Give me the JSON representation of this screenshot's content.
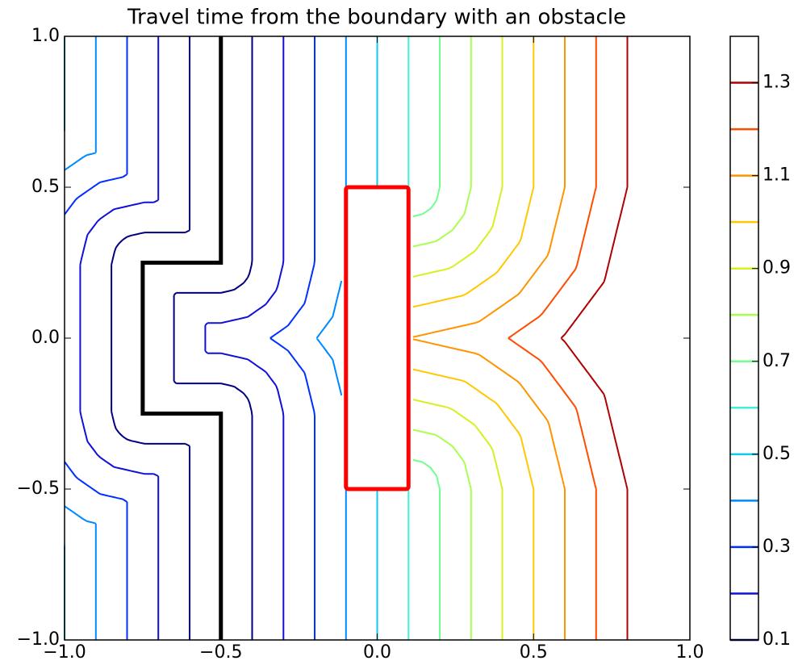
{
  "chart_data": {
    "type": "contour",
    "title": "Travel time from the boundary with an obstacle",
    "xlim": [
      -1,
      1
    ],
    "ylim": [
      -1,
      1
    ],
    "xticks": [
      {
        "value": -1,
        "label": "−1.0"
      },
      {
        "value": -0.5,
        "label": "−0.5"
      },
      {
        "value": 0,
        "label": "0.0"
      },
      0.5,
      {
        "value": 1,
        "label": "1.0"
      }
    ],
    "yticks": [
      {
        "value": -1,
        "label": "−1.0"
      },
      {
        "value": -0.5,
        "label": "−0.5"
      },
      {
        "value": 0,
        "label": "0.0"
      },
      0.5,
      {
        "value": 1,
        "label": "1.0"
      }
    ],
    "levels": [
      0.1,
      0.2,
      0.3,
      0.4,
      0.5,
      0.6,
      0.7,
      0.8,
      0.9,
      1.0,
      1.1,
      1.2,
      1.3
    ],
    "colors": [
      "#00007f",
      "#1010d8",
      "#0030ff",
      "#0088ff",
      "#10c8f0",
      "#40f0d8",
      "#70ff90",
      "#a8ff50",
      "#d8f020",
      "#ffc800",
      "#ff9400",
      "#ff4c00",
      "#b00000"
    ],
    "boundary": {
      "x": [
        -0.5,
        -0.5,
        -0.75,
        -0.75,
        -0.5,
        -0.5
      ],
      "y": [
        1,
        0.25,
        0.25,
        -0.25,
        -0.25,
        -1
      ],
      "color": "#000000"
    },
    "obstacle": {
      "x": [
        -0.1,
        0.1
      ],
      "y": [
        -0.5,
        0.5
      ],
      "color": "#ff0000"
    },
    "colorbar": {
      "lim": [
        0.1,
        1.4
      ],
      "ticks": [
        0.1,
        0.3,
        0.5,
        0.7,
        0.9,
        1.1,
        1.3
      ]
    }
  }
}
